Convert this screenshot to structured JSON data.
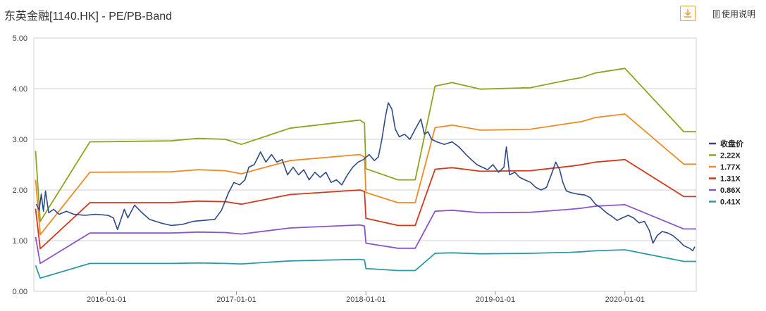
{
  "header": {
    "title": "东英金融[1140.HK] - PE/PB-Band",
    "download_icon": "download-icon",
    "help_label": "使用说明",
    "help_icon": "document-icon",
    "accent_color": "#f0a040"
  },
  "chart_data": {
    "type": "line",
    "title": "东英金融[1140.HK] - PE/PB-Band",
    "xlabel": "",
    "ylabel": "",
    "ylim": [
      0,
      5
    ],
    "yticks": [
      "0.00",
      "1.00",
      "2.00",
      "3.00",
      "4.00",
      "5.00"
    ],
    "xlim": [
      "2015-06-10",
      "2020-07-20"
    ],
    "xticks": [
      "2016-01-01",
      "2017-01-01",
      "2018-01-01",
      "2019-01-01",
      "2020-01-01"
    ],
    "grid": true,
    "legend": "right",
    "series": [
      {
        "name": "收盘价",
        "color": "#2e4a8a",
        "points": [
          [
            "2015-06-17",
            1.72
          ],
          [
            "2015-06-25",
            1.6
          ],
          [
            "2015-07-01",
            1.92
          ],
          [
            "2015-07-07",
            1.58
          ],
          [
            "2015-07-13",
            1.98
          ],
          [
            "2015-07-22",
            1.55
          ],
          [
            "2015-08-05",
            1.62
          ],
          [
            "2015-08-20",
            1.52
          ],
          [
            "2015-09-10",
            1.58
          ],
          [
            "2015-10-01",
            1.52
          ],
          [
            "2015-11-01",
            1.5
          ],
          [
            "2015-12-01",
            1.52
          ],
          [
            "2016-01-05",
            1.5
          ],
          [
            "2016-01-20",
            1.45
          ],
          [
            "2016-02-01",
            1.22
          ],
          [
            "2016-02-20",
            1.62
          ],
          [
            "2016-03-01",
            1.45
          ],
          [
            "2016-03-20",
            1.7
          ],
          [
            "2016-04-10",
            1.55
          ],
          [
            "2016-05-01",
            1.42
          ],
          [
            "2016-06-01",
            1.35
          ],
          [
            "2016-07-01",
            1.3
          ],
          [
            "2016-08-01",
            1.32
          ],
          [
            "2016-09-01",
            1.38
          ],
          [
            "2016-10-01",
            1.4
          ],
          [
            "2016-11-01",
            1.42
          ],
          [
            "2016-11-20",
            1.6
          ],
          [
            "2016-12-10",
            1.95
          ],
          [
            "2016-12-25",
            2.15
          ],
          [
            "2017-01-10",
            2.1
          ],
          [
            "2017-01-25",
            2.2
          ],
          [
            "2017-02-05",
            2.45
          ],
          [
            "2017-02-20",
            2.5
          ],
          [
            "2017-03-10",
            2.75
          ],
          [
            "2017-03-25",
            2.55
          ],
          [
            "2017-04-10",
            2.7
          ],
          [
            "2017-04-25",
            2.55
          ],
          [
            "2017-05-10",
            2.6
          ],
          [
            "2017-05-25",
            2.3
          ],
          [
            "2017-06-10",
            2.45
          ],
          [
            "2017-06-25",
            2.3
          ],
          [
            "2017-07-10",
            2.4
          ],
          [
            "2017-07-25",
            2.2
          ],
          [
            "2017-08-10",
            2.35
          ],
          [
            "2017-08-25",
            2.25
          ],
          [
            "2017-09-10",
            2.35
          ],
          [
            "2017-09-25",
            2.15
          ],
          [
            "2017-10-10",
            2.2
          ],
          [
            "2017-10-25",
            2.1
          ],
          [
            "2017-11-10",
            2.3
          ],
          [
            "2017-11-25",
            2.45
          ],
          [
            "2017-12-10",
            2.55
          ],
          [
            "2017-12-25",
            2.6
          ],
          [
            "2018-01-10",
            2.7
          ],
          [
            "2018-01-25",
            2.58
          ],
          [
            "2018-02-05",
            2.65
          ],
          [
            "2018-02-15",
            3.0
          ],
          [
            "2018-02-25",
            3.45
          ],
          [
            "2018-03-05",
            3.72
          ],
          [
            "2018-03-15",
            3.6
          ],
          [
            "2018-03-25",
            3.2
          ],
          [
            "2018-04-05",
            3.05
          ],
          [
            "2018-04-20",
            3.1
          ],
          [
            "2018-05-05",
            3.0
          ],
          [
            "2018-05-20",
            3.2
          ],
          [
            "2018-06-05",
            3.4
          ],
          [
            "2018-06-15",
            3.1
          ],
          [
            "2018-06-25",
            3.15
          ],
          [
            "2018-07-05",
            3.0
          ],
          [
            "2018-07-20",
            2.95
          ],
          [
            "2018-08-10",
            2.9
          ],
          [
            "2018-09-01",
            2.95
          ],
          [
            "2018-09-20",
            2.85
          ],
          [
            "2018-10-10",
            2.7
          ],
          [
            "2018-10-25",
            2.6
          ],
          [
            "2018-11-10",
            2.5
          ],
          [
            "2018-11-25",
            2.45
          ],
          [
            "2018-12-10",
            2.4
          ],
          [
            "2018-12-25",
            2.5
          ],
          [
            "2019-01-10",
            2.35
          ],
          [
            "2019-01-25",
            2.45
          ],
          [
            "2019-02-01",
            2.85
          ],
          [
            "2019-02-10",
            2.3
          ],
          [
            "2019-02-25",
            2.35
          ],
          [
            "2019-03-10",
            2.25
          ],
          [
            "2019-03-25",
            2.2
          ],
          [
            "2019-04-10",
            2.15
          ],
          [
            "2019-04-25",
            2.05
          ],
          [
            "2019-05-10",
            2.0
          ],
          [
            "2019-05-25",
            2.05
          ],
          [
            "2019-06-10",
            2.35
          ],
          [
            "2019-06-20",
            2.55
          ],
          [
            "2019-07-01",
            2.4
          ],
          [
            "2019-07-10",
            2.15
          ],
          [
            "2019-07-20",
            1.98
          ],
          [
            "2019-08-01",
            1.95
          ],
          [
            "2019-08-20",
            1.92
          ],
          [
            "2019-09-10",
            1.9
          ],
          [
            "2019-09-25",
            1.85
          ],
          [
            "2019-10-10",
            1.72
          ],
          [
            "2019-10-25",
            1.65
          ],
          [
            "2019-11-10",
            1.55
          ],
          [
            "2019-11-25",
            1.48
          ],
          [
            "2019-12-10",
            1.4
          ],
          [
            "2019-12-25",
            1.45
          ],
          [
            "2020-01-10",
            1.5
          ],
          [
            "2020-01-25",
            1.45
          ],
          [
            "2020-02-10",
            1.35
          ],
          [
            "2020-02-25",
            1.38
          ],
          [
            "2020-03-10",
            1.2
          ],
          [
            "2020-03-20",
            0.95
          ],
          [
            "2020-04-01",
            1.1
          ],
          [
            "2020-04-15",
            1.18
          ],
          [
            "2020-05-01",
            1.15
          ],
          [
            "2020-05-15",
            1.1
          ],
          [
            "2020-06-01",
            1.0
          ],
          [
            "2020-06-15",
            0.9
          ],
          [
            "2020-07-01",
            0.85
          ],
          [
            "2020-07-10",
            0.8
          ],
          [
            "2020-07-16",
            0.88
          ]
        ]
      },
      {
        "name": "2.22X",
        "color": "#8aa61f",
        "points": [
          [
            "2015-06-15",
            2.77
          ],
          [
            "2015-06-28",
            1.38
          ],
          [
            "2015-11-15",
            2.95
          ],
          [
            "2016-07-01",
            2.97
          ],
          [
            "2016-09-15",
            3.02
          ],
          [
            "2016-12-01",
            3.0
          ],
          [
            "2017-01-15",
            2.9
          ],
          [
            "2017-06-01",
            3.22
          ],
          [
            "2017-12-15",
            3.38
          ],
          [
            "2017-12-28",
            3.32
          ],
          [
            "2018-01-01",
            2.42
          ],
          [
            "2018-04-01",
            2.2
          ],
          [
            "2018-05-20",
            2.2
          ],
          [
            "2018-07-15",
            4.05
          ],
          [
            "2018-09-01",
            4.12
          ],
          [
            "2018-11-20",
            3.99
          ],
          [
            "2019-04-10",
            4.02
          ],
          [
            "2019-08-01",
            4.18
          ],
          [
            "2019-09-01",
            4.22
          ],
          [
            "2019-10-10",
            4.31
          ],
          [
            "2020-01-01",
            4.4
          ],
          [
            "2020-06-15",
            3.15
          ],
          [
            "2020-07-20",
            3.15
          ]
        ]
      },
      {
        "name": "1.77X",
        "color": "#f08a24",
        "points": [
          [
            "2015-06-15",
            2.2
          ],
          [
            "2015-06-28",
            1.12
          ],
          [
            "2015-11-15",
            2.35
          ],
          [
            "2016-07-01",
            2.36
          ],
          [
            "2016-09-15",
            2.4
          ],
          [
            "2016-12-01",
            2.38
          ],
          [
            "2017-01-15",
            2.32
          ],
          [
            "2017-06-01",
            2.58
          ],
          [
            "2017-12-15",
            2.7
          ],
          [
            "2017-12-28",
            2.65
          ],
          [
            "2018-01-01",
            1.95
          ],
          [
            "2018-04-01",
            1.75
          ],
          [
            "2018-05-20",
            1.75
          ],
          [
            "2018-07-15",
            3.23
          ],
          [
            "2018-09-01",
            3.28
          ],
          [
            "2018-11-20",
            3.18
          ],
          [
            "2019-04-10",
            3.2
          ],
          [
            "2019-08-01",
            3.32
          ],
          [
            "2019-09-01",
            3.35
          ],
          [
            "2019-10-10",
            3.43
          ],
          [
            "2020-01-01",
            3.5
          ],
          [
            "2020-06-15",
            2.51
          ],
          [
            "2020-07-20",
            2.51
          ]
        ]
      },
      {
        "name": "1.31X",
        "color": "#d2381c",
        "points": [
          [
            "2015-06-15",
            1.63
          ],
          [
            "2015-06-28",
            0.84
          ],
          [
            "2015-11-15",
            1.75
          ],
          [
            "2016-07-01",
            1.75
          ],
          [
            "2016-09-15",
            1.78
          ],
          [
            "2016-12-01",
            1.77
          ],
          [
            "2017-01-15",
            1.72
          ],
          [
            "2017-06-01",
            1.91
          ],
          [
            "2017-12-15",
            2.0
          ],
          [
            "2017-12-28",
            1.97
          ],
          [
            "2018-01-01",
            1.44
          ],
          [
            "2018-04-01",
            1.3
          ],
          [
            "2018-05-20",
            1.3
          ],
          [
            "2018-07-15",
            2.41
          ],
          [
            "2018-09-01",
            2.44
          ],
          [
            "2018-11-20",
            2.37
          ],
          [
            "2019-04-10",
            2.38
          ],
          [
            "2019-08-01",
            2.47
          ],
          [
            "2019-09-01",
            2.5
          ],
          [
            "2019-10-10",
            2.55
          ],
          [
            "2020-01-01",
            2.6
          ],
          [
            "2020-06-15",
            1.87
          ],
          [
            "2020-07-20",
            1.87
          ]
        ]
      },
      {
        "name": "0.86X",
        "color": "#8a55c8",
        "points": [
          [
            "2015-06-15",
            1.07
          ],
          [
            "2015-06-28",
            0.55
          ],
          [
            "2015-11-15",
            1.15
          ],
          [
            "2016-07-01",
            1.15
          ],
          [
            "2016-09-15",
            1.17
          ],
          [
            "2016-12-01",
            1.16
          ],
          [
            "2017-01-15",
            1.13
          ],
          [
            "2017-06-01",
            1.25
          ],
          [
            "2017-12-15",
            1.31
          ],
          [
            "2017-12-28",
            1.29
          ],
          [
            "2018-01-01",
            0.95
          ],
          [
            "2018-04-01",
            0.85
          ],
          [
            "2018-05-20",
            0.85
          ],
          [
            "2018-07-15",
            1.58
          ],
          [
            "2018-09-01",
            1.6
          ],
          [
            "2018-11-20",
            1.55
          ],
          [
            "2019-04-10",
            1.56
          ],
          [
            "2019-08-01",
            1.62
          ],
          [
            "2019-09-01",
            1.64
          ],
          [
            "2019-10-10",
            1.68
          ],
          [
            "2020-01-01",
            1.71
          ],
          [
            "2020-06-15",
            1.23
          ],
          [
            "2020-07-20",
            1.23
          ]
        ]
      },
      {
        "name": "0.41X",
        "color": "#2a9ba6",
        "points": [
          [
            "2015-06-15",
            0.51
          ],
          [
            "2015-06-28",
            0.26
          ],
          [
            "2015-11-15",
            0.55
          ],
          [
            "2016-07-01",
            0.55
          ],
          [
            "2016-09-15",
            0.56
          ],
          [
            "2016-12-01",
            0.55
          ],
          [
            "2017-01-15",
            0.54
          ],
          [
            "2017-06-01",
            0.6
          ],
          [
            "2017-12-15",
            0.63
          ],
          [
            "2017-12-28",
            0.62
          ],
          [
            "2018-01-01",
            0.45
          ],
          [
            "2018-04-01",
            0.41
          ],
          [
            "2018-05-20",
            0.41
          ],
          [
            "2018-07-15",
            0.75
          ],
          [
            "2018-09-01",
            0.76
          ],
          [
            "2018-11-20",
            0.74
          ],
          [
            "2019-04-10",
            0.75
          ],
          [
            "2019-08-01",
            0.77
          ],
          [
            "2019-09-01",
            0.78
          ],
          [
            "2019-10-10",
            0.8
          ],
          [
            "2020-01-01",
            0.82
          ],
          [
            "2020-06-15",
            0.59
          ],
          [
            "2020-07-20",
            0.59
          ]
        ]
      }
    ]
  }
}
